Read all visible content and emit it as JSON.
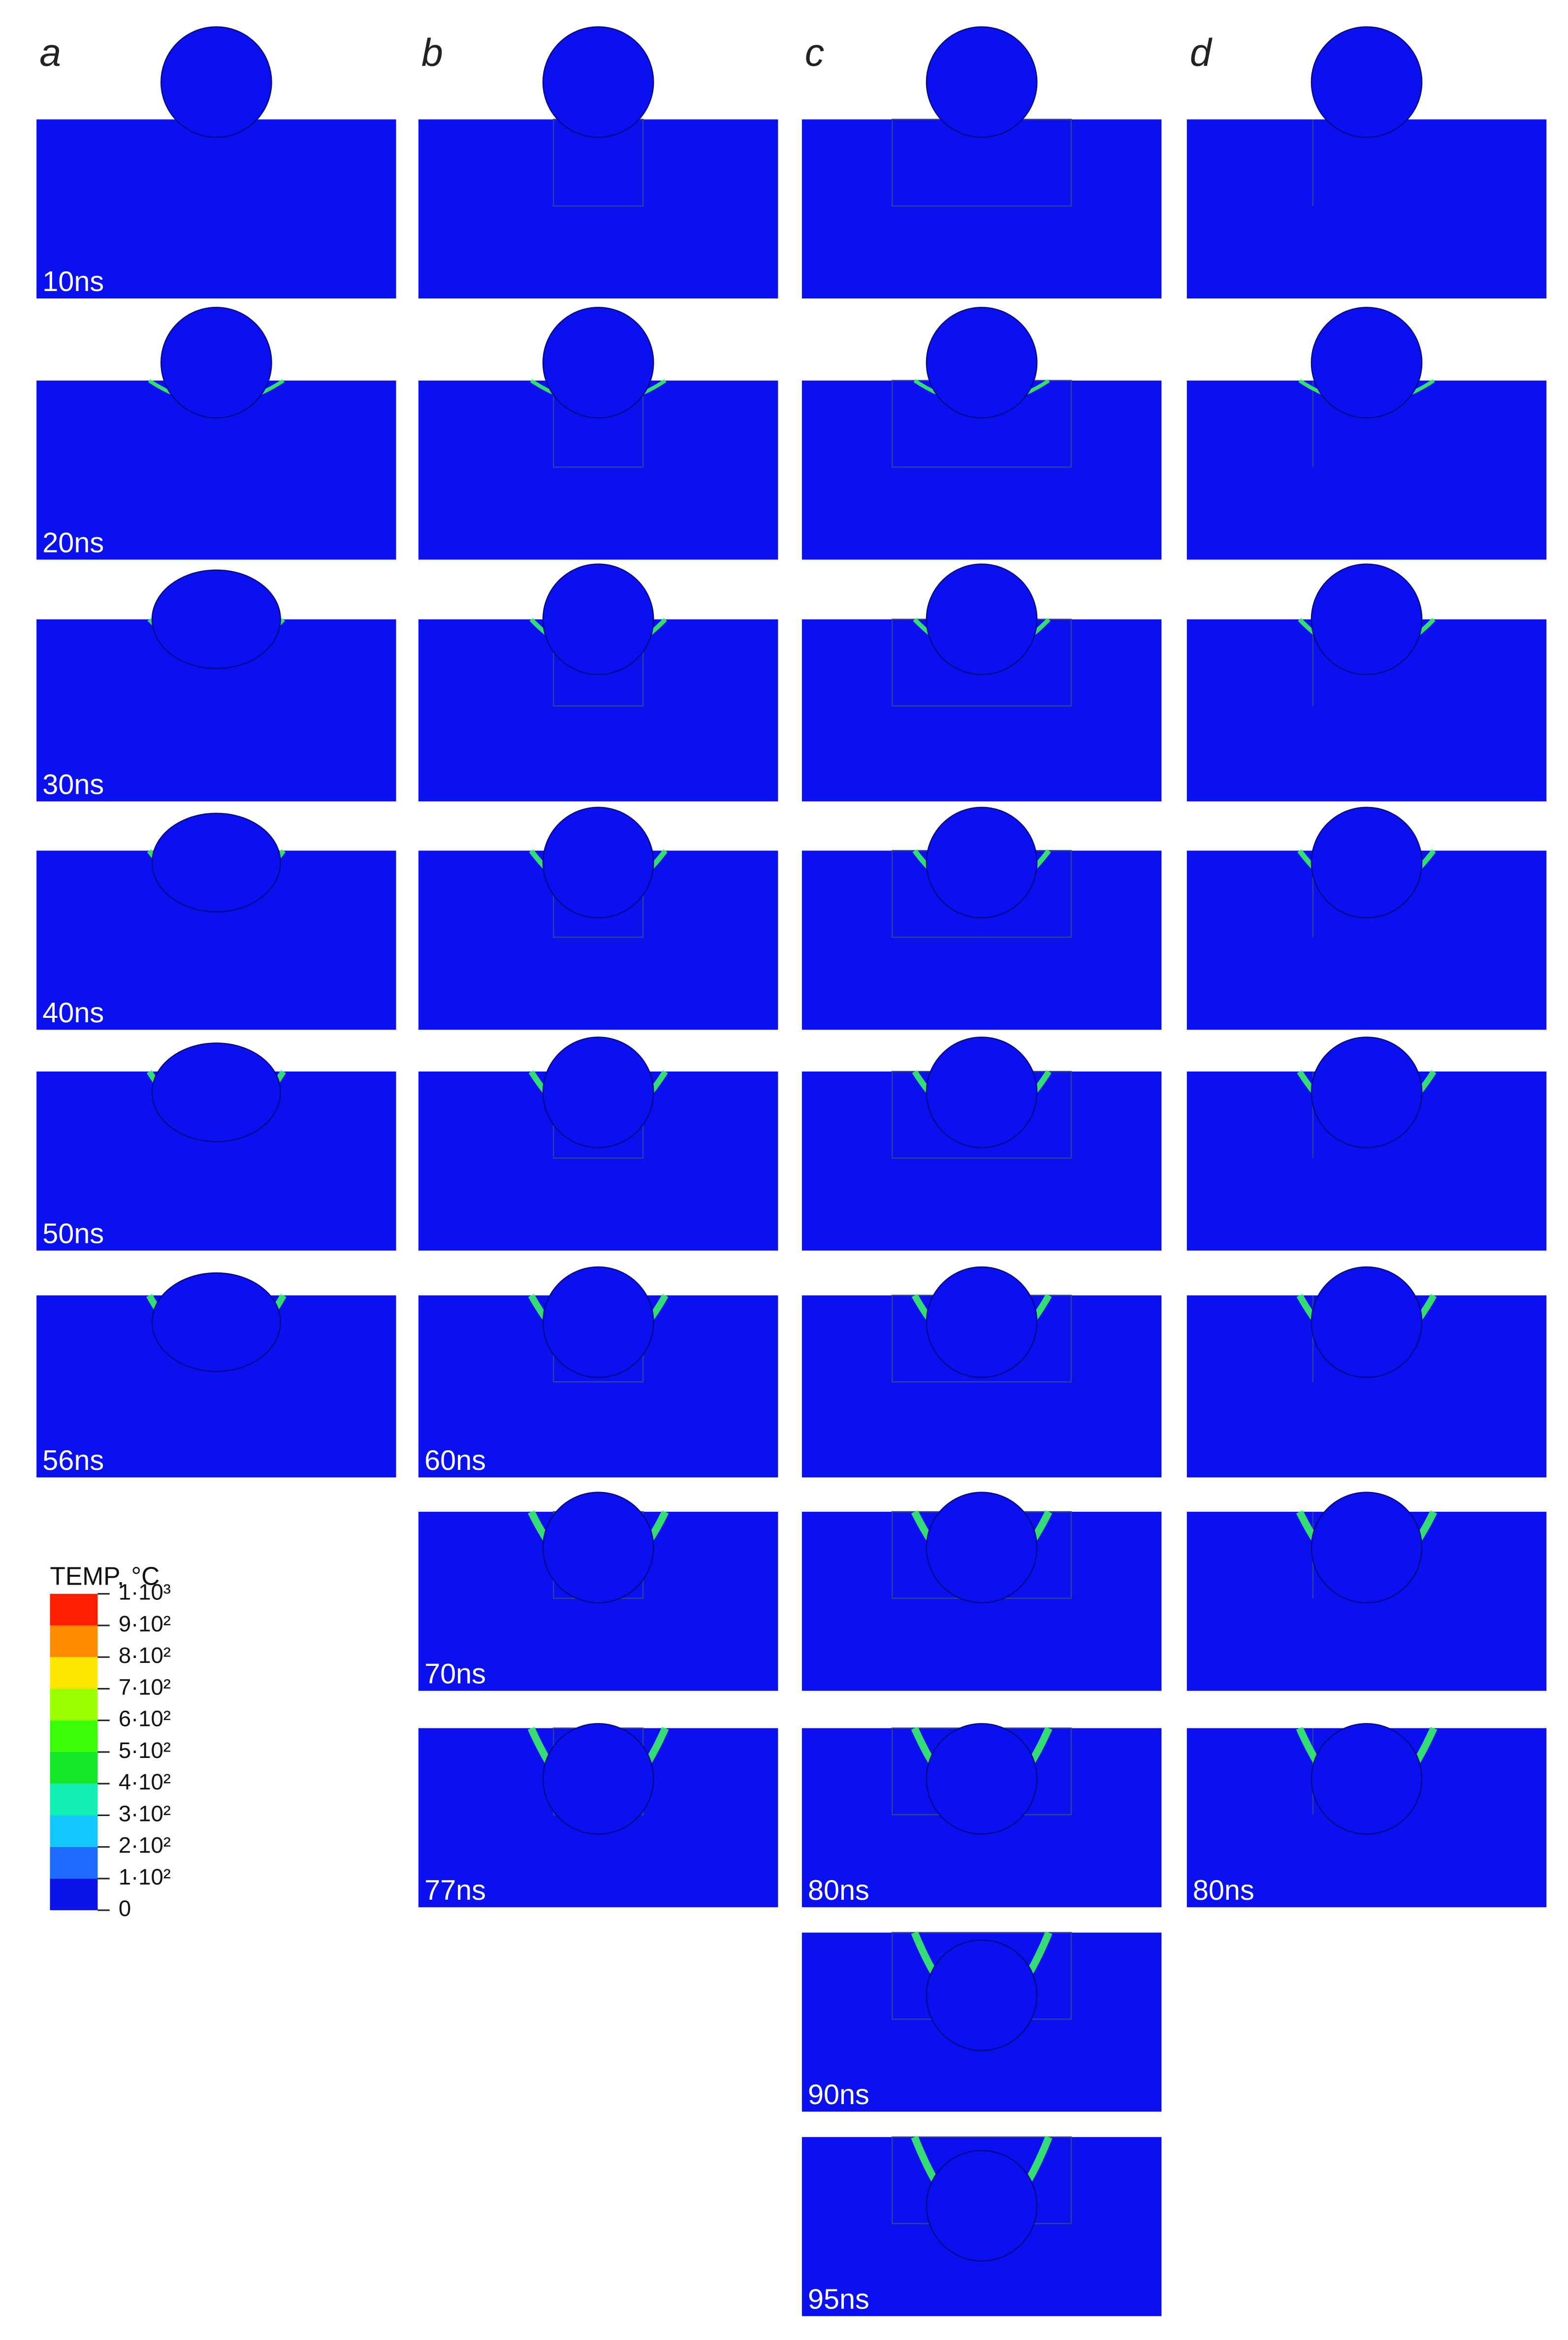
{
  "figure": {
    "columns": [
      {
        "label": "a",
        "panels": [
          "10ns",
          "20ns",
          "30ns",
          "40ns",
          "50ns",
          "56ns"
        ]
      },
      {
        "label": "b",
        "panels": [
          null,
          null,
          null,
          null,
          null,
          "60ns",
          "70ns",
          "77ns"
        ]
      },
      {
        "label": "c",
        "panels": [
          null,
          null,
          null,
          null,
          null,
          null,
          null,
          "80ns",
          "90ns",
          "95ns"
        ]
      },
      {
        "label": "d",
        "panels": [
          null,
          null,
          null,
          null,
          null,
          null,
          null,
          "80ns"
        ]
      }
    ],
    "legend": {
      "title": "TEMP, °C",
      "ticks": [
        0,
        {
          "value": 100,
          "label": "1·10²"
        },
        {
          "value": 200,
          "label": "2·10²"
        },
        {
          "value": 300,
          "label": "3·10²"
        },
        {
          "value": 400,
          "label": "4·10²"
        },
        {
          "value": 500,
          "label": "5·10²"
        },
        {
          "value": 600,
          "label": "6·10²"
        },
        {
          "value": 700,
          "label": "7·10²"
        },
        {
          "value": 800,
          "label": "8·10²"
        },
        {
          "value": 900,
          "label": "9·10²"
        },
        {
          "value": 1000,
          "label": "1·10³"
        }
      ],
      "colors": [
        "#0a14e6",
        "#1e6cff",
        "#12c8ff",
        "#12f0b4",
        "#14e628",
        "#3cff0a",
        "#9cff00",
        "#ffe600",
        "#ff8c00",
        "#ff1e00"
      ]
    }
  }
}
